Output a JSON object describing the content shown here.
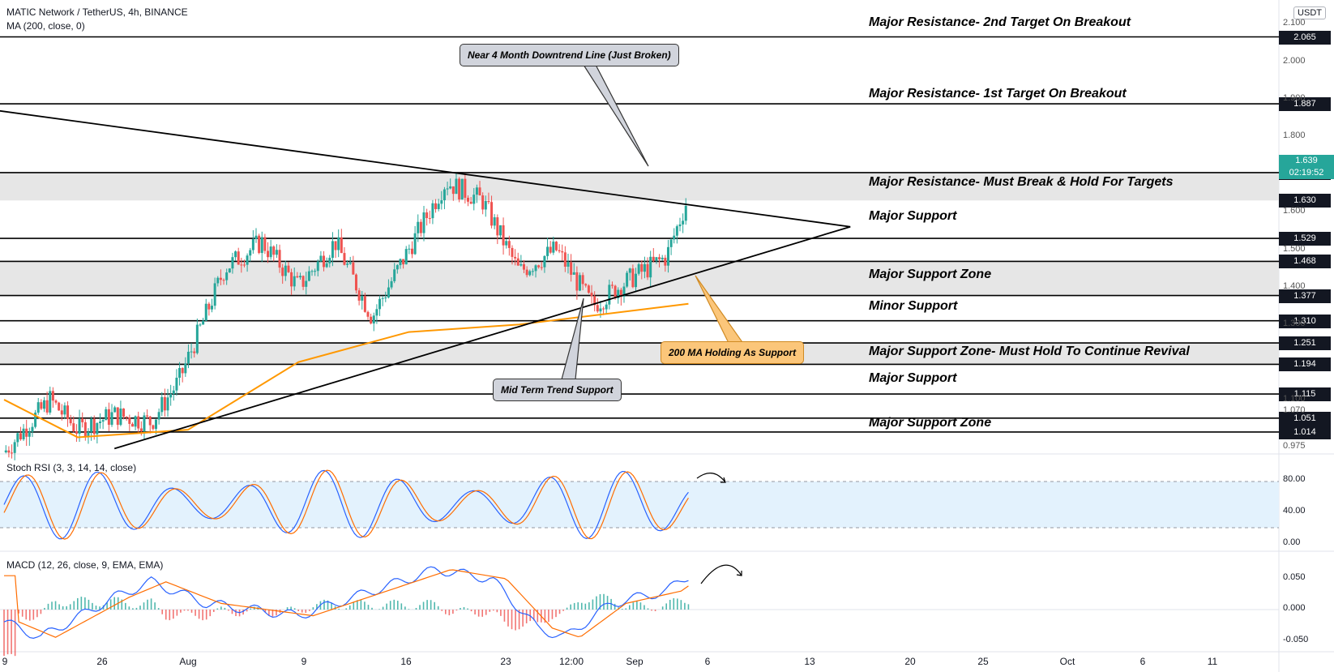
{
  "header": {
    "symbol": "MATIC Network / TetherUS, 4h, BINANCE",
    "indicator": "MA (200, close, 0)",
    "currency": "USDT"
  },
  "price_levels": [
    {
      "value": "2.065",
      "y": 2.065
    },
    {
      "value": "1.887",
      "y": 1.887
    },
    {
      "value": "1.704",
      "y": 1.704
    },
    {
      "value": "1.630",
      "y": 1.63
    },
    {
      "value": "1.529",
      "y": 1.529
    },
    {
      "value": "1.468",
      "y": 1.468
    },
    {
      "value": "1.377",
      "y": 1.377
    },
    {
      "value": "1.310",
      "y": 1.31
    },
    {
      "value": "1.251",
      "y": 1.251
    },
    {
      "value": "1.194",
      "y": 1.194
    },
    {
      "value": "1.115",
      "y": 1.115
    },
    {
      "value": "1.051",
      "y": 1.051
    },
    {
      "value": "1.014",
      "y": 1.014
    }
  ],
  "current_price": {
    "price": "1.639",
    "countdown": "02:19:52"
  },
  "axis_ticks": [
    "2.100",
    "2.000",
    "1.900",
    "1.800",
    "1.600",
    "1.500",
    "1.400",
    "1.300",
    "1.100",
    "1.070",
    "0.975"
  ],
  "level_labels": [
    {
      "text": "Major Resistance- 2nd Target On Breakout",
      "y": 2.1
    },
    {
      "text": "Major Resistance- 1st Target On Breakout",
      "y": 1.91
    },
    {
      "text": "Major Resistance- Must Break & Hold For Targets",
      "y": 1.675
    },
    {
      "text": "Major Support",
      "y": 1.585
    },
    {
      "text": "Major Support Zone",
      "y": 1.43
    },
    {
      "text": "Minor Support",
      "y": 1.345
    },
    {
      "text": "Major Support Zone- Must Hold To Continue Revival",
      "y": 1.225
    },
    {
      "text": "Major Support",
      "y": 1.155
    },
    {
      "text": "Major Support Zone",
      "y": 1.035
    }
  ],
  "callouts": {
    "downtrend": "Near 4 Month Downtrend Line (Just Broken)",
    "ma_support": "200 MA Holding As Support",
    "trend_support": "Mid Term Trend Support"
  },
  "stoch": {
    "title": "Stoch RSI (3, 3, 14, 14, close)",
    "ticks": [
      "80.00",
      "40.00",
      "0.00"
    ],
    "upper": 80,
    "lower": 20
  },
  "macd": {
    "title": "MACD (12, 26, close, 9, EMA, EMA)",
    "ticks": [
      "0.050",
      "0.000",
      "-0.050"
    ]
  },
  "x_axis": [
    "9",
    "26",
    "Aug",
    "9",
    "16",
    "23",
    "12:00",
    "Sep",
    "6",
    "13",
    "20",
    "25",
    "Oct",
    "6",
    "11"
  ],
  "colors": {
    "up": "#26a69a",
    "down": "#ef5350",
    "ma": "#ff9800",
    "macd": "#2962ff",
    "signal": "#ff6d00",
    "zone": "#e6e6e6",
    "band": "#e3f2fd"
  },
  "chart_data": {
    "type": "candlestick",
    "symbol": "MATIC Network / TetherUS",
    "timeframe": "4h",
    "ylim": [
      0.96,
      2.12
    ],
    "close_path": [
      {
        "t": 0,
        "price": 0.96
      },
      {
        "t": 25,
        "price": 1.1
      },
      {
        "t": 40,
        "price": 1.02
      },
      {
        "t": 60,
        "price": 1.06
      },
      {
        "t": 80,
        "price": 1.04
      },
      {
        "t": 95,
        "price": 1.15
      },
      {
        "t": 120,
        "price": 1.45
      },
      {
        "t": 140,
        "price": 1.52
      },
      {
        "t": 160,
        "price": 1.4
      },
      {
        "t": 180,
        "price": 1.52
      },
      {
        "t": 200,
        "price": 1.32
      },
      {
        "t": 220,
        "price": 1.5
      },
      {
        "t": 240,
        "price": 1.68
      },
      {
        "t": 260,
        "price": 1.63
      },
      {
        "t": 280,
        "price": 1.44
      },
      {
        "t": 300,
        "price": 1.5
      },
      {
        "t": 320,
        "price": 1.35
      },
      {
        "t": 340,
        "price": 1.42
      },
      {
        "t": 360,
        "price": 1.48
      },
      {
        "t": 372,
        "price": 1.64
      }
    ],
    "ma200": [
      {
        "t": 0,
        "price": 1.1
      },
      {
        "t": 40,
        "price": 1.0
      },
      {
        "t": 100,
        "price": 1.02
      },
      {
        "t": 160,
        "price": 1.2
      },
      {
        "t": 220,
        "price": 1.28
      },
      {
        "t": 280,
        "price": 1.3
      },
      {
        "t": 372,
        "price": 1.355
      }
    ],
    "trendlines": [
      {
        "name": "downtrend",
        "from": {
          "t": -5,
          "price": 1.87
        },
        "to": {
          "t": 460,
          "price": 1.56
        }
      },
      {
        "name": "uptrend",
        "from": {
          "t": 60,
          "price": 0.97
        },
        "to": {
          "t": 460,
          "price": 1.56
        }
      }
    ]
  }
}
